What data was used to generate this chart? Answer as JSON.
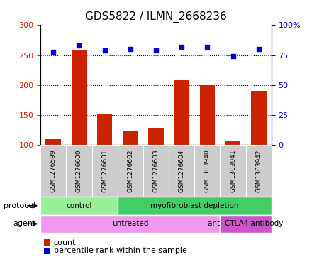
{
  "title": "GDS5822 / ILMN_2668236",
  "samples": [
    "GSM1276599",
    "GSM1276600",
    "GSM1276601",
    "GSM1276602",
    "GSM1276603",
    "GSM1276604",
    "GSM1303940",
    "GSM1303941",
    "GSM1303942"
  ],
  "counts": [
    110,
    258,
    153,
    123,
    129,
    208,
    200,
    108,
    190
  ],
  "percentiles": [
    78,
    83,
    79,
    80,
    79,
    82,
    82,
    74,
    80
  ],
  "ylim_left": [
    100,
    300
  ],
  "ylim_right": [
    0,
    100
  ],
  "yticks_left": [
    100,
    150,
    200,
    250,
    300
  ],
  "yticks_right": [
    0,
    25,
    50,
    75,
    100
  ],
  "ytick_labels_right": [
    "0",
    "25",
    "50",
    "75",
    "100%"
  ],
  "bar_color": "#cc2200",
  "scatter_color": "#0000cc",
  "grid_color": "#000000",
  "plot_bg": "#ffffff",
  "sample_label_bg": "#cccccc",
  "protocol_groups": [
    {
      "label": "control",
      "start": 0,
      "end": 3,
      "color": "#99ee99"
    },
    {
      "label": "myofibroblast depletion",
      "start": 3,
      "end": 9,
      "color": "#44cc66"
    }
  ],
  "agent_groups": [
    {
      "label": "untreated",
      "start": 0,
      "end": 7,
      "color": "#ee99ee"
    },
    {
      "label": "anti-CTLA4 antibody",
      "start": 7,
      "end": 9,
      "color": "#cc55cc"
    }
  ],
  "legend_count_color": "#cc2200",
  "legend_percentile_color": "#0000cc",
  "legend_count_label": "count",
  "legend_percentile_label": "percentile rank within the sample",
  "protocol_label": "protocol",
  "agent_label": "agent",
  "title_fontsize": 11,
  "tick_fontsize": 8,
  "sample_fontsize": 6.5
}
